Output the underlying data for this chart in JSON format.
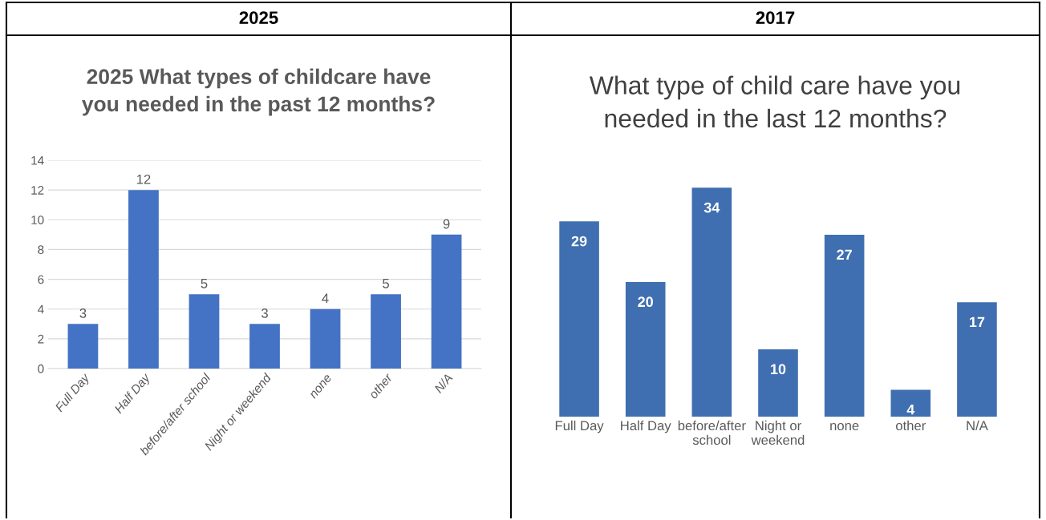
{
  "chart_data": [
    {
      "type": "bar",
      "annotations": [
        "2025"
      ],
      "title": "2025 What types of childcare have\nyou needed in the past 12 months?",
      "categories": [
        "Full Day",
        "Half Day",
        "before/after school",
        "Night or weekend",
        "none",
        "other",
        "N/A"
      ],
      "values": [
        3,
        12,
        5,
        3,
        4,
        5,
        9
      ],
      "color": "#4472c4",
      "ylim": [
        0,
        14
      ],
      "yticks": [
        0,
        2,
        4,
        6,
        8,
        10,
        12,
        14
      ],
      "grid": "y",
      "data_labels": true
    },
    {
      "type": "bar",
      "annotations": [
        "2017"
      ],
      "title": "What type of child care have you\nneeded in the last 12 months?",
      "categories": [
        "Full Day",
        "Half Day",
        "before/after\nschool",
        "Night or\nweekend",
        "none",
        "other",
        "N/A"
      ],
      "values": [
        29,
        20,
        34,
        10,
        27,
        4,
        17
      ],
      "color": "#3f6fb0",
      "data_labels": true
    }
  ]
}
